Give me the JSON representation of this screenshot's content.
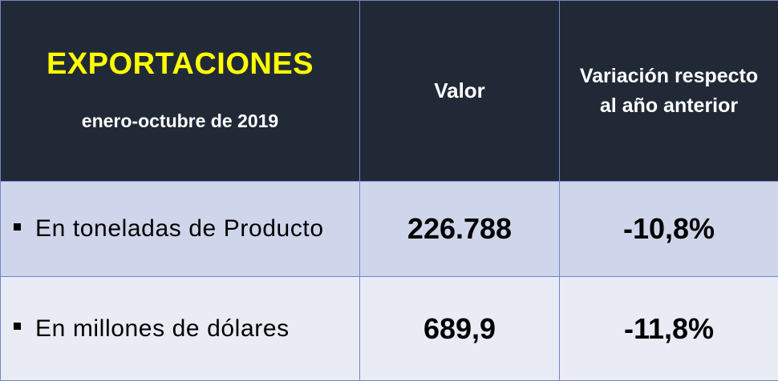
{
  "header": {
    "title": "EXPORTACIONES",
    "subtitle": "enero-octubre de 2019",
    "col_value": "Valor",
    "col_variation_line1": "Variación respecto",
    "col_variation_line2": "al año anterior"
  },
  "rows": [
    {
      "label": "En toneladas de Producto",
      "value": "226.788",
      "variation": "-10,8%"
    },
    {
      "label": "En millones de dólares",
      "value": "689,9",
      "variation": "-11,8%"
    }
  ],
  "colors": {
    "header_bg": "#212936",
    "title_color": "#ffff00",
    "row1_bg": "#cfd5ea",
    "row2_bg": "#e9ebf5",
    "border": "#6f86c9"
  }
}
